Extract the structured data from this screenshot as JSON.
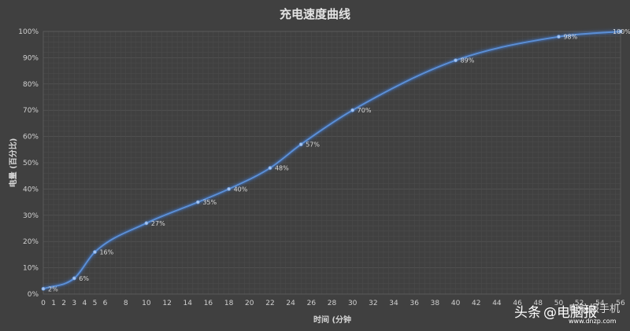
{
  "chart_data": {
    "type": "line",
    "title": "充电速度曲线",
    "xlabel": "时间 (分钟",
    "ylabel": "电量 (百分比)",
    "x": [
      0,
      3,
      5,
      10,
      15,
      18,
      22,
      25,
      30,
      40,
      50,
      56
    ],
    "series": [
      {
        "values": [
          2,
          6,
          16,
          27,
          35,
          40,
          48,
          57,
          70,
          89,
          98,
          100
        ]
      }
    ],
    "data_labels": [
      "2%",
      "6%",
      "16%",
      "27%",
      "35%",
      "40%",
      "48%",
      "57%",
      "70%",
      "89%",
      "98%",
      "100%"
    ],
    "xlim": [
      0,
      56
    ],
    "ylim": [
      0,
      100
    ],
    "x_ticks": [
      0,
      1,
      2,
      3,
      4,
      5,
      6,
      8,
      10,
      12,
      14,
      16,
      18,
      20,
      22,
      24,
      26,
      28,
      30,
      32,
      34,
      36,
      38,
      40,
      42,
      44,
      46,
      48,
      50,
      52,
      54,
      56
    ],
    "y_ticks": [
      0,
      10,
      20,
      30,
      40,
      50,
      60,
      70,
      80,
      90,
      100
    ],
    "y_tick_labels": [
      "0%",
      "10%",
      "20%",
      "30%",
      "40%",
      "50%",
      "60%",
      "70%",
      "80%",
      "90%",
      "100%"
    ],
    "grid": true,
    "colors": {
      "background": "#404040",
      "line": "#5b8fd6",
      "glow": "#3f6fb8",
      "grid": "#555555",
      "text": "#d0d0d0"
    }
  },
  "watermark": {
    "platform": "头条",
    "handle": "@电脑报",
    "site": "www.dnzp.com",
    "overlay": "电脑报手机"
  }
}
